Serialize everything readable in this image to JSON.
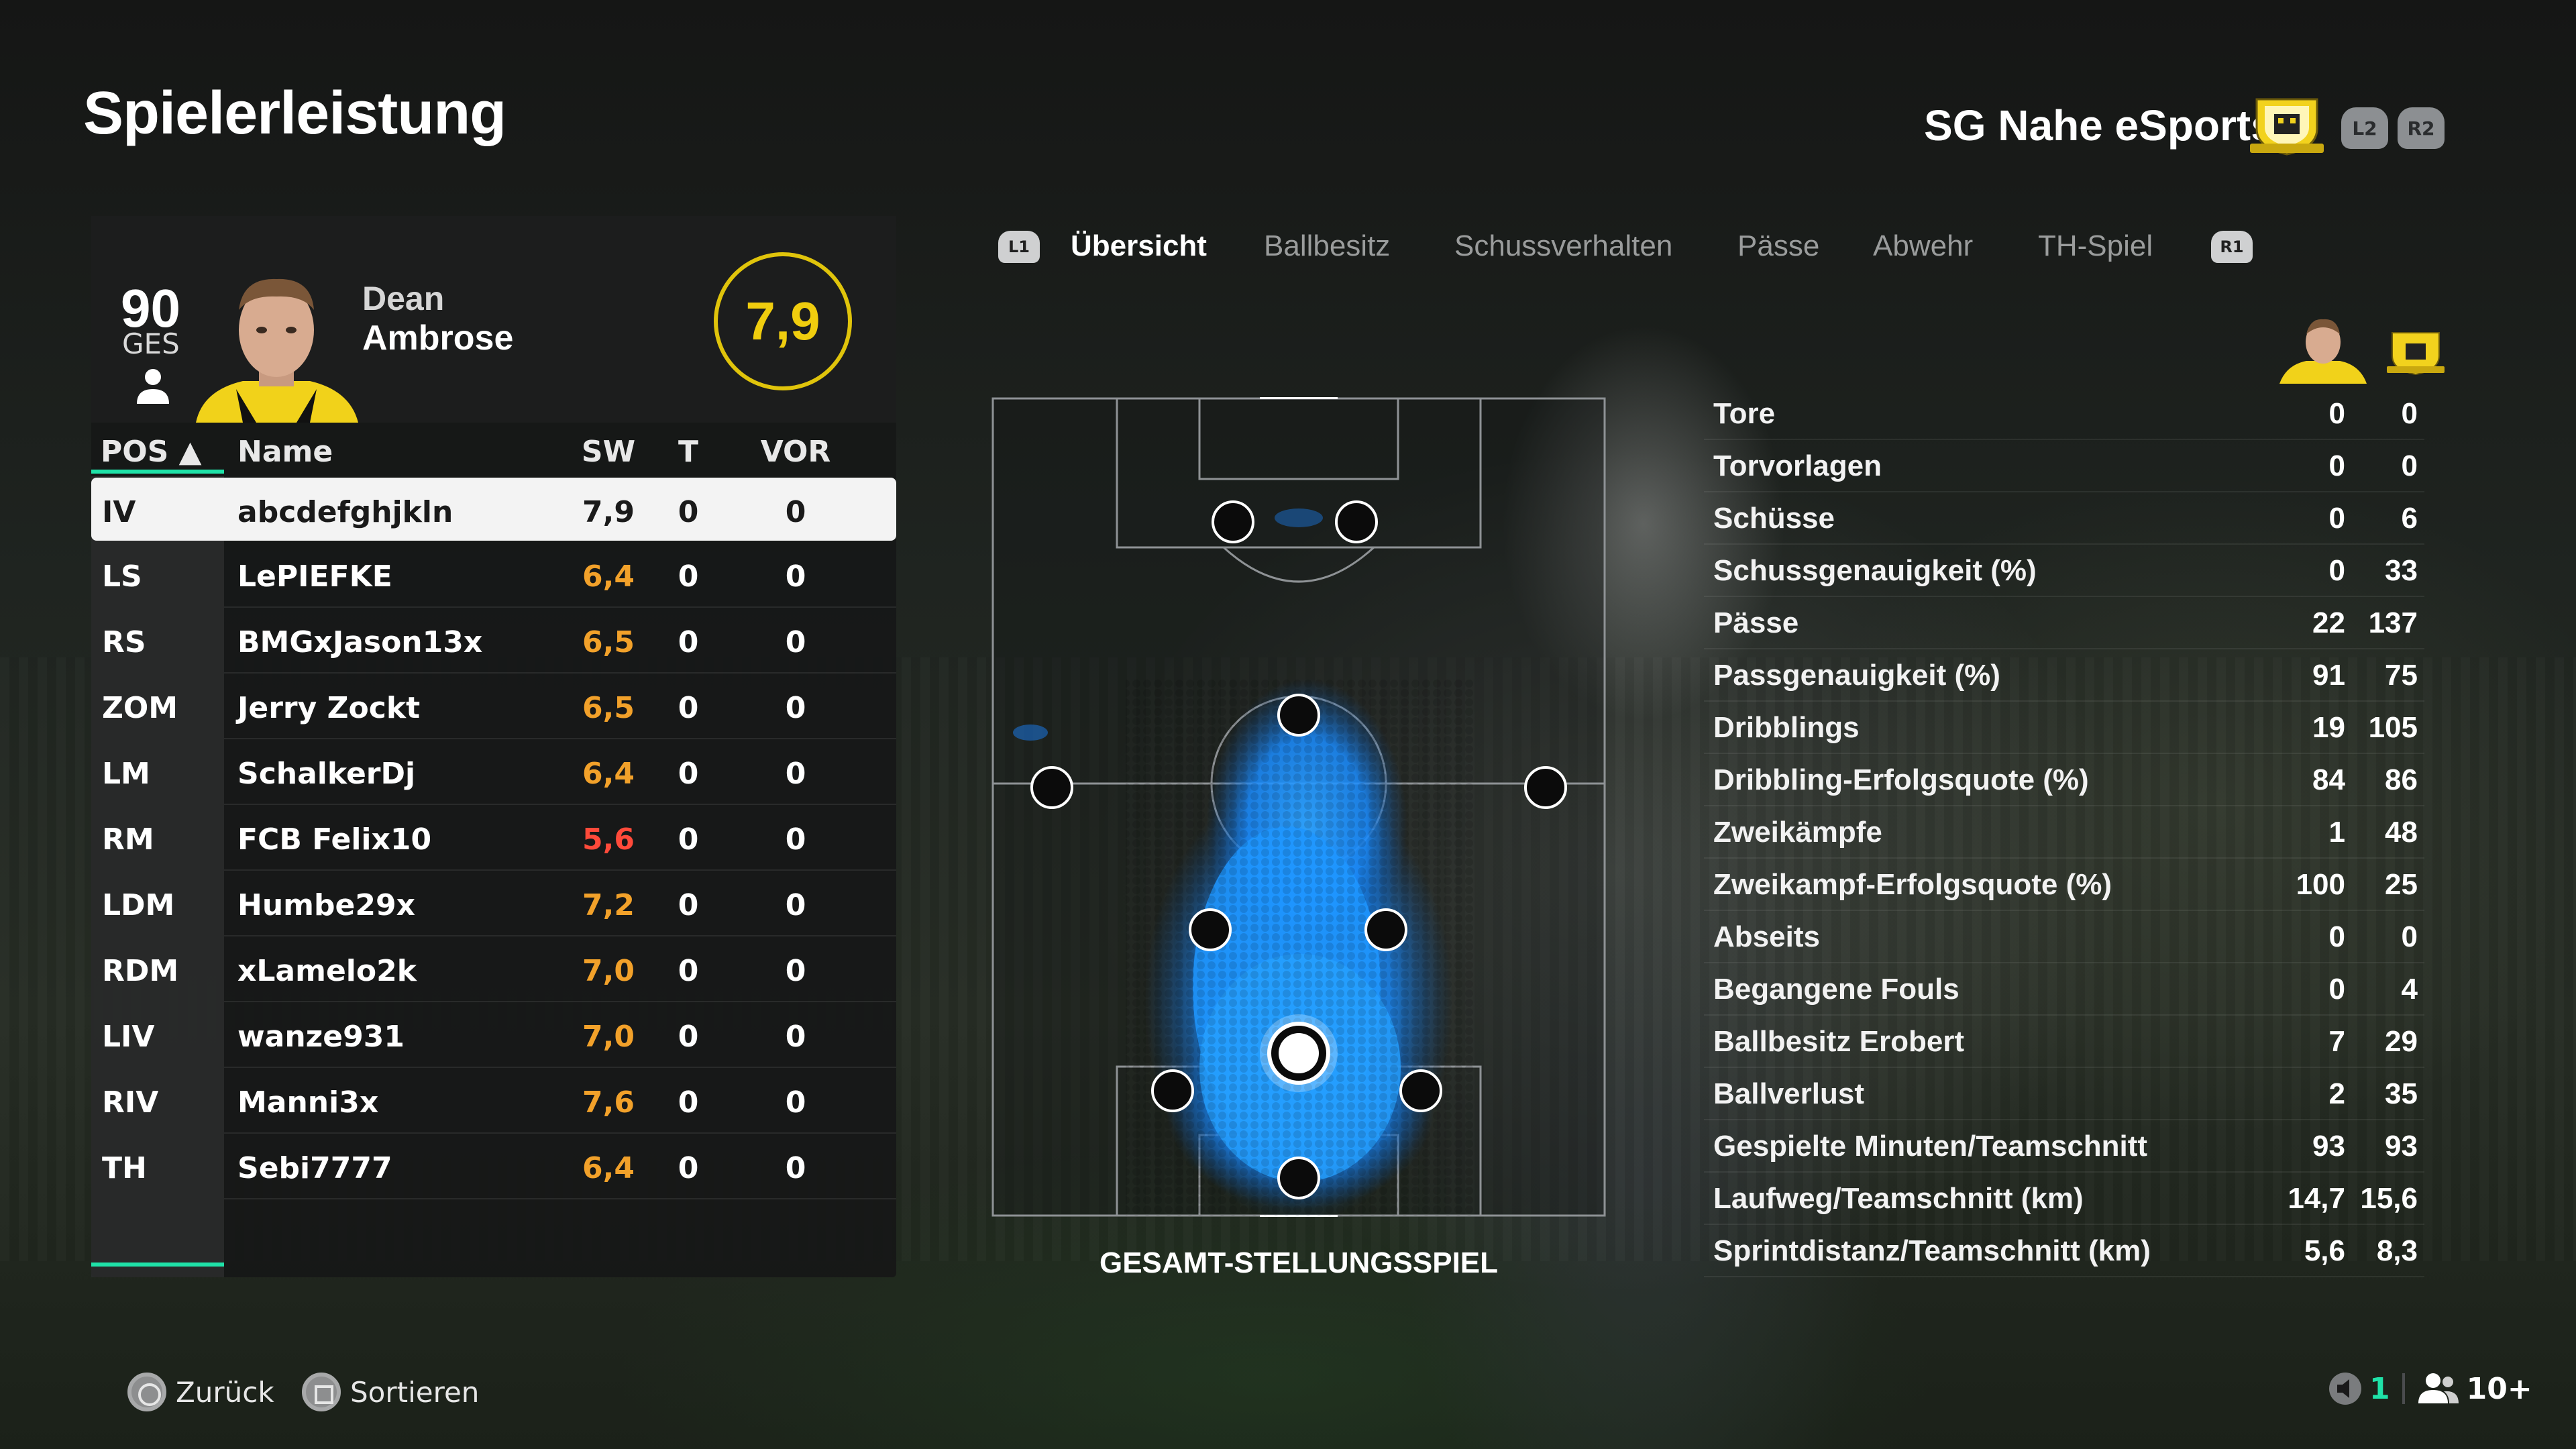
{
  "page": {
    "title": "Spielerleistung",
    "team_name": "SG Nahe eSports"
  },
  "header_buttons": {
    "l2": "L2",
    "r2": "R2",
    "l1": "L1",
    "r1": "R1"
  },
  "player": {
    "overall": "90",
    "overall_label": "GES",
    "first_name": "Dean",
    "last_name": "Ambrose",
    "rating": "7,9"
  },
  "table": {
    "headers": {
      "pos": "POS ▲",
      "name": "Name",
      "sw": "SW",
      "t": "T",
      "vor": "VOR"
    },
    "rows": [
      {
        "pos": "IV",
        "name": "abcdefghjkln",
        "sw": "7,9",
        "t": "0",
        "vor": "0",
        "selected": true
      },
      {
        "pos": "LS",
        "name": "LePIEFKE",
        "sw": "6,4",
        "t": "0",
        "vor": "0"
      },
      {
        "pos": "RS",
        "name": "BMGxJason13x",
        "sw": "6,5",
        "t": "0",
        "vor": "0"
      },
      {
        "pos": "ZOM",
        "name": "Jerry Zockt",
        "sw": "6,5",
        "t": "0",
        "vor": "0"
      },
      {
        "pos": "LM",
        "name": "SchalkerDj",
        "sw": "6,4",
        "t": "0",
        "vor": "0"
      },
      {
        "pos": "RM",
        "name": "FCB Felix10",
        "sw": "5,6",
        "t": "0",
        "vor": "0"
      },
      {
        "pos": "LDM",
        "name": "Humbe29x",
        "sw": "7,2",
        "t": "0",
        "vor": "0"
      },
      {
        "pos": "RDM",
        "name": "xLamelo2k",
        "sw": "7,0",
        "t": "0",
        "vor": "0"
      },
      {
        "pos": "LIV",
        "name": "wanze931",
        "sw": "7,0",
        "t": "0",
        "vor": "0"
      },
      {
        "pos": "RIV",
        "name": "Manni3x",
        "sw": "7,6",
        "t": "0",
        "vor": "0"
      },
      {
        "pos": "TH",
        "name": "Sebi7777",
        "sw": "6,4",
        "t": "0",
        "vor": "0"
      }
    ]
  },
  "colors": {
    "rating_orange": "#f2a12a",
    "rating_red": "#ff4a3a",
    "rating_yellow": "#f0cd0e",
    "accent_green": "#1fe2a8",
    "heat_blue": "#1a8cff"
  },
  "tabs": [
    "Übersicht",
    "Ballbesitz",
    "Schussverhalten",
    "Pässe",
    "Abwehr",
    "TH-Spiel"
  ],
  "pitch": {
    "caption": "GESAMT-STELLUNGSSPIEL"
  },
  "stats": [
    {
      "label": "Tore",
      "player": "0",
      "team": "0"
    },
    {
      "label": "Torvorlagen",
      "player": "0",
      "team": "0"
    },
    {
      "label": "Schüsse",
      "player": "0",
      "team": "6"
    },
    {
      "label": "Schussgenauigkeit (%)",
      "player": "0",
      "team": "33"
    },
    {
      "label": "Pässe",
      "player": "22",
      "team": "137"
    },
    {
      "label": "Passgenauigkeit (%)",
      "player": "91",
      "team": "75"
    },
    {
      "label": "Dribblings",
      "player": "19",
      "team": "105"
    },
    {
      "label": "Dribbling-Erfolgsquote (%)",
      "player": "84",
      "team": "86"
    },
    {
      "label": "Zweikämpfe",
      "player": "1",
      "team": "48"
    },
    {
      "label": "Zweikampf-Erfolgsquote (%)",
      "player": "100",
      "team": "25"
    },
    {
      "label": "Abseits",
      "player": "0",
      "team": "0"
    },
    {
      "label": "Begangene Fouls",
      "player": "0",
      "team": "4"
    },
    {
      "label": "Ballbesitz Erobert",
      "player": "7",
      "team": "29"
    },
    {
      "label": "Ballverlust",
      "player": "2",
      "team": "35"
    },
    {
      "label": "Gespielte Minuten/Teamschnitt",
      "player": "93",
      "team": "93"
    },
    {
      "label": "Laufweg/Teamschnitt (km)",
      "player": "14,7",
      "team": "15,6"
    },
    {
      "label": "Sprintdistanz/Teamschnitt (km)",
      "player": "5,6",
      "team": "8,3"
    }
  ],
  "footer": {
    "back": "Zurück",
    "sort": "Sortieren",
    "mic_count": "1",
    "players_count": "10+"
  }
}
